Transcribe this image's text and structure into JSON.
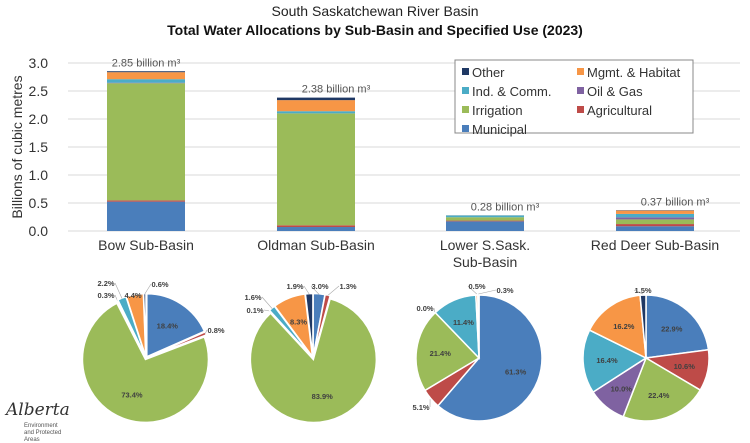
{
  "title": "South Saskatchewan River Basin",
  "subtitle": "Total Water Allocations by Sub-Basin and Specified Use (2023)",
  "chart_data": [
    {
      "type": "bar",
      "stacked": true,
      "ylabel": "Billions of cubic metres",
      "ylim": [
        0,
        3.0
      ],
      "yticks": [
        "0.0",
        "0.5",
        "1.0",
        "1.5",
        "2.0",
        "2.5",
        "3.0"
      ],
      "grid": true,
      "legend_position": "top-right",
      "categories": [
        "Bow Sub-Basin",
        "Oldman Sub-Basin",
        "Lower S.Sask. Sub-Basin",
        "Red Deer Sub-Basin"
      ],
      "totals": [
        2.85,
        2.38,
        0.28,
        0.37
      ],
      "total_labels": [
        "2.85 billion m³",
        "2.38 billion m³",
        "0.28 billion m³",
        "0.37 billion m³"
      ],
      "series": [
        {
          "name": "Municipal",
          "color": "#4a7ebb",
          "values": [
            0.524,
            0.071,
            0.172,
            0.085
          ]
        },
        {
          "name": "Agricultural",
          "color": "#be4b48",
          "values": [
            0.023,
            0.031,
            0.014,
            0.039
          ]
        },
        {
          "name": "Irrigation",
          "color": "#9bbb59",
          "values": [
            2.092,
            1.997,
            0.06,
            0.083
          ]
        },
        {
          "name": "Oil & Gas",
          "color": "#7f62a1",
          "values": [
            0.009,
            0.002,
            0.0,
            0.037
          ]
        },
        {
          "name": "Ind. & Comm.",
          "color": "#4bacc6",
          "values": [
            0.063,
            0.038,
            0.032,
            0.061
          ]
        },
        {
          "name": "Mgmt. & Habitat",
          "color": "#f79646",
          "values": [
            0.125,
            0.198,
            0.001,
            0.06
          ]
        },
        {
          "name": "Other",
          "color": "#1f3864",
          "values": [
            0.017,
            0.045,
            0.001,
            0.006
          ]
        }
      ],
      "legend_order": [
        "Other",
        "Mgmt. & Habitat",
        "Ind. & Comm.",
        "Oil & Gas",
        "Irrigation",
        "Agricultural",
        "Municipal"
      ]
    },
    {
      "type": "pie",
      "categories": [
        "Municipal",
        "Agricultural",
        "Irrigation",
        "Oil & Gas",
        "Ind. & Comm.",
        "Mgmt. & Habitat",
        "Other"
      ],
      "pies": [
        {
          "values": [
            18.4,
            0.8,
            73.4,
            0.3,
            2.2,
            4.4,
            0.6
          ],
          "labels": [
            "18.4%",
            "0.8%",
            "73.4%",
            "0.3%",
            "2.2%",
            "4.4%",
            "0.6%"
          ]
        },
        {
          "values": [
            3.0,
            1.3,
            83.9,
            0.1,
            1.6,
            8.3,
            1.9
          ],
          "labels": [
            "3.0%",
            "1.3%",
            "83.9%",
            "0.1%",
            "1.6%",
            "8.3%",
            "1.9%"
          ]
        },
        {
          "values": [
            61.3,
            5.1,
            21.4,
            0.0,
            11.4,
            0.5,
            0.3
          ],
          "labels": [
            "61.3%",
            "5.1%",
            "21.4%",
            "0.0%",
            "11.4%",
            "0.5%",
            "0.3%"
          ]
        },
        {
          "values": [
            22.9,
            10.6,
            22.4,
            10.0,
            16.4,
            16.2,
            1.5
          ],
          "labels": [
            "22.9%",
            "10.6%",
            "22.4%",
            "10.0%",
            "16.4%",
            "16.2%",
            "1.5%"
          ]
        }
      ]
    }
  ],
  "logo": {
    "name": "Alberta",
    "sub": "Environment and Protected Areas"
  }
}
